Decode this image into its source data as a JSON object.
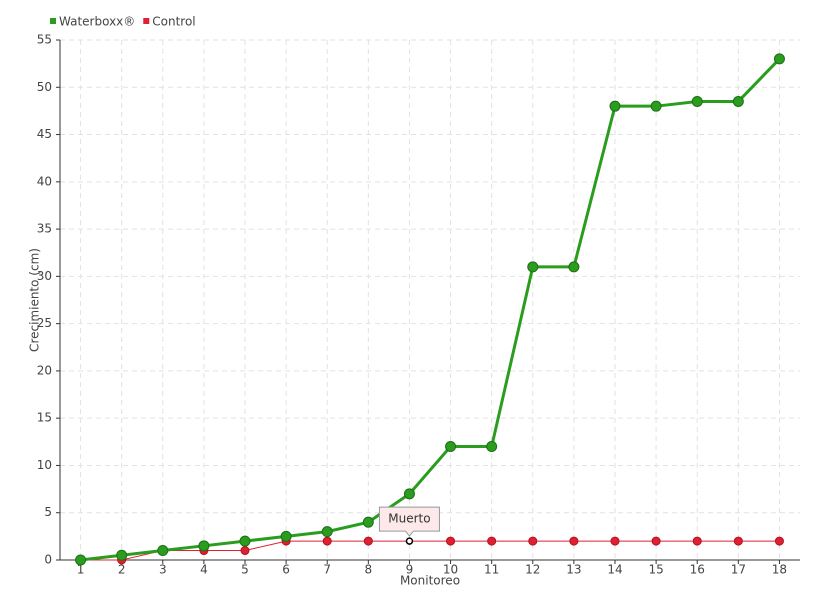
{
  "chart_data": {
    "type": "line",
    "categories": [
      "1",
      "2",
      "3",
      "4",
      "5",
      "6",
      "7",
      "8",
      "9",
      "10",
      "11",
      "12",
      "13",
      "14",
      "15",
      "16",
      "17",
      "18"
    ],
    "series": [
      {
        "name": "Waterboxx®",
        "color": "#2a9d1f",
        "values": [
          0,
          0.5,
          1,
          1.5,
          2,
          2.5,
          3,
          4,
          7,
          12,
          12,
          31,
          31,
          48,
          48,
          48.5,
          48.5,
          53
        ]
      },
      {
        "name": "Control",
        "color": "#e02030",
        "values": [
          0,
          0,
          1,
          1,
          1,
          2,
          2,
          2,
          2,
          2,
          2,
          2,
          2,
          2,
          2,
          2,
          2,
          2
        ]
      }
    ],
    "x_label": "Monitoreo",
    "y_label": "Crecimiento (cm)",
    "ylim": [
      0,
      55
    ],
    "yticks": [
      0,
      5,
      10,
      15,
      20,
      25,
      30,
      35,
      40,
      45,
      50,
      55
    ],
    "grid": true,
    "legend": "top-left",
    "annotation": "Muerto"
  }
}
